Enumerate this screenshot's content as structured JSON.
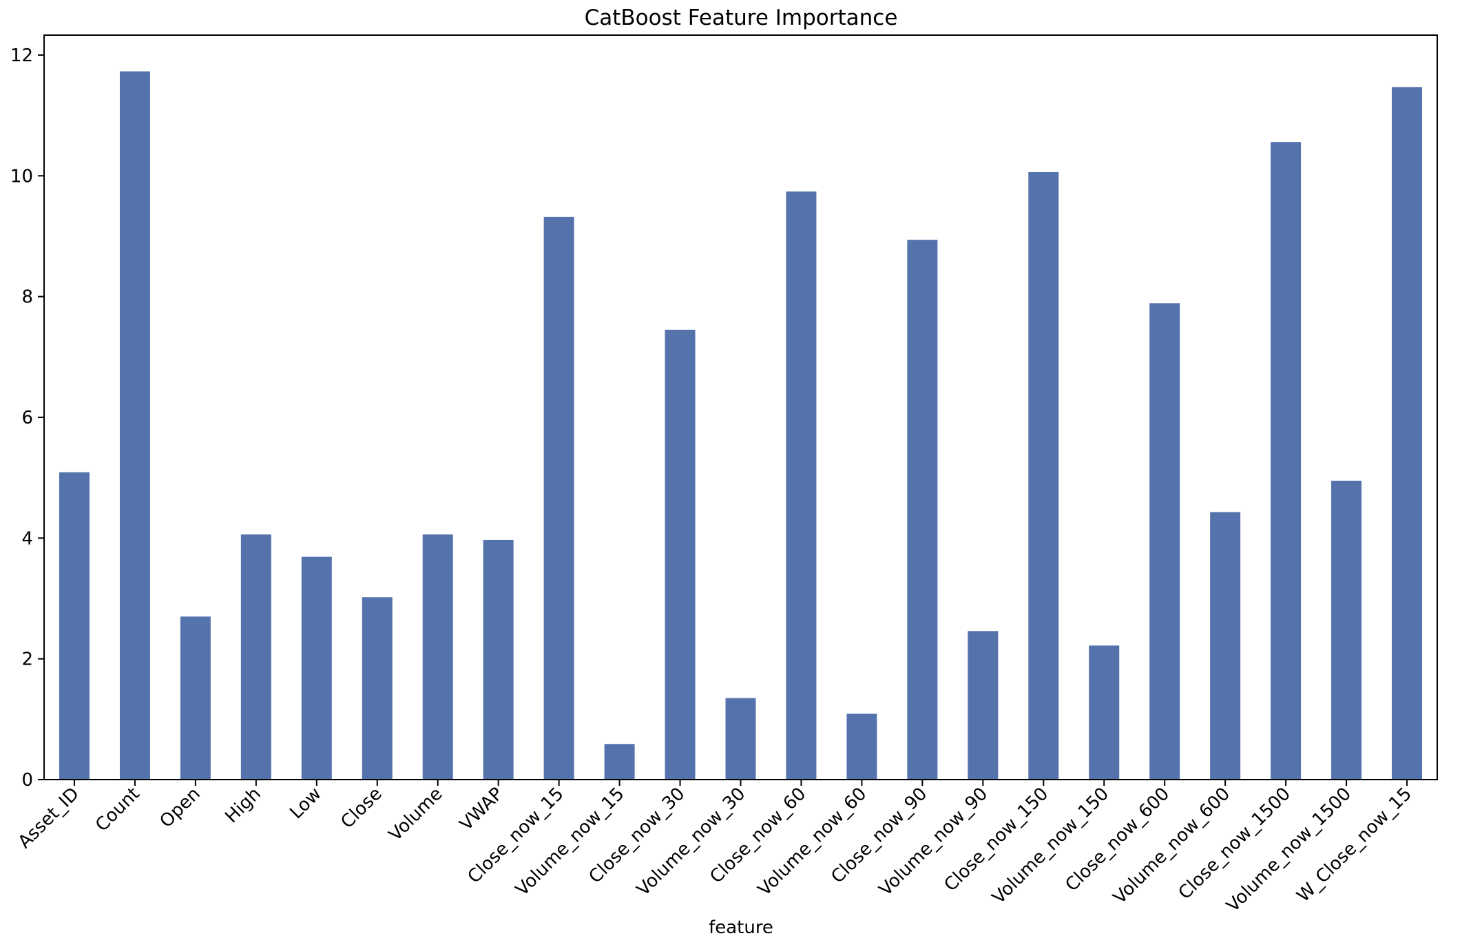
{
  "chart_data": {
    "type": "bar",
    "title": "CatBoost Feature Importance",
    "xlabel": "feature",
    "ylabel": "",
    "ylim": [
      0,
      12.33
    ],
    "yticks": [
      0,
      2,
      4,
      6,
      8,
      10,
      12
    ],
    "grid": false,
    "legend": "none",
    "bar_color": "#5472AB",
    "categories": [
      "Asset_ID",
      "Count",
      "Open",
      "High",
      "Low",
      "Close",
      "Volume",
      "VWAP",
      "Close_now_15",
      "Volume_now_15",
      "Close_now_30",
      "Volume_now_30",
      "Close_now_60",
      "Volume_now_60",
      "Close_now_90",
      "Volume_now_90",
      "Close_now_150",
      "Volume_now_150",
      "Close_now_600",
      "Volume_now_600",
      "Close_now_1500",
      "Volume_now_1500",
      "W_Close_now_15"
    ],
    "values": [
      5.09,
      11.73,
      2.7,
      4.06,
      3.69,
      3.02,
      4.06,
      3.97,
      9.32,
      0.59,
      7.45,
      1.35,
      9.74,
      1.09,
      8.94,
      2.46,
      10.06,
      2.22,
      7.89,
      4.43,
      10.56,
      4.95,
      11.47
    ]
  }
}
